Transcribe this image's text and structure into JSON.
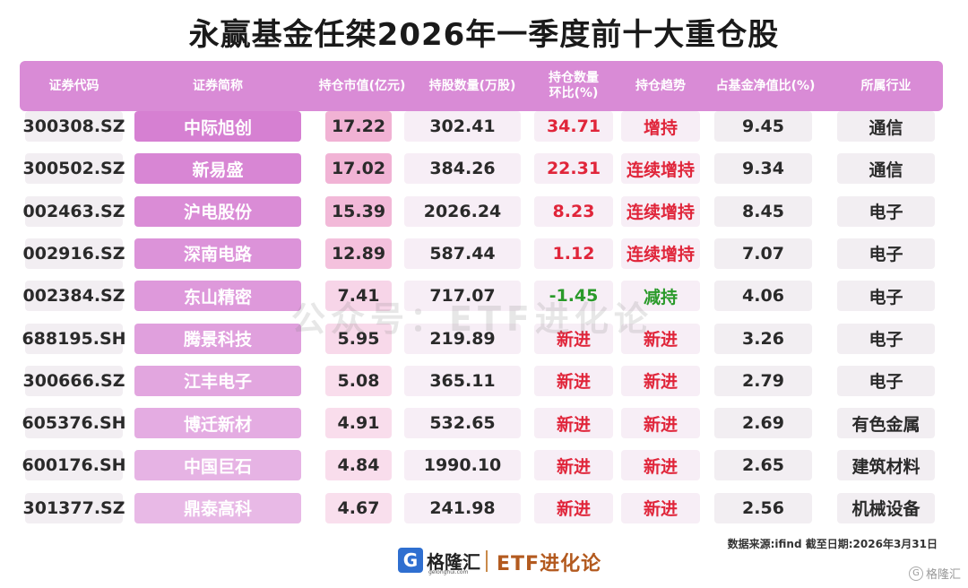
{
  "title": "永赢基金任桀2026年一季度前十大重仓股",
  "colors": {
    "header_bg": "#d98bd6",
    "increase_red": "#e0253a",
    "decrease_green": "#2a9a2a",
    "brand_orange": "#b35a1f"
  },
  "headers": [
    "证券代码",
    "证券简称",
    "持仓市值(亿元)",
    "持股数量(万股)",
    "持仓数量\n环比(%)",
    "持仓趋势",
    "占基金净值比(%)",
    "所属行业"
  ],
  "rows": [
    {
      "code": "300308.SZ",
      "name": "中际旭创",
      "mv": "17.22",
      "qty": "302.41",
      "chg": "34.71",
      "trend": "增持",
      "nav": "9.45",
      "industry": "通信",
      "chg_color": "#e0253a",
      "trend_color": "#e0253a"
    },
    {
      "code": "300502.SZ",
      "name": "新易盛",
      "mv": "17.02",
      "qty": "384.26",
      "chg": "22.31",
      "trend": "连续增持",
      "nav": "9.34",
      "industry": "通信",
      "chg_color": "#e0253a",
      "trend_color": "#e0253a"
    },
    {
      "code": "002463.SZ",
      "name": "沪电股份",
      "mv": "15.39",
      "qty": "2026.24",
      "chg": "8.23",
      "trend": "连续增持",
      "nav": "8.45",
      "industry": "电子",
      "chg_color": "#e0253a",
      "trend_color": "#e0253a"
    },
    {
      "code": "002916.SZ",
      "name": "深南电路",
      "mv": "12.89",
      "qty": "587.44",
      "chg": "1.12",
      "trend": "连续增持",
      "nav": "7.07",
      "industry": "电子",
      "chg_color": "#e0253a",
      "trend_color": "#e0253a"
    },
    {
      "code": "002384.SZ",
      "name": "东山精密",
      "mv": "7.41",
      "qty": "717.07",
      "chg": "-1.45",
      "trend": "减持",
      "nav": "4.06",
      "industry": "电子",
      "chg_color": "#2a9a2a",
      "trend_color": "#2a9a2a"
    },
    {
      "code": "688195.SH",
      "name": "腾景科技",
      "mv": "5.95",
      "qty": "219.89",
      "chg": "新进",
      "trend": "新进",
      "nav": "3.26",
      "industry": "电子",
      "chg_color": "#e0253a",
      "trend_color": "#e0253a"
    },
    {
      "code": "300666.SZ",
      "name": "江丰电子",
      "mv": "5.08",
      "qty": "365.11",
      "chg": "新进",
      "trend": "新进",
      "nav": "2.79",
      "industry": "电子",
      "chg_color": "#e0253a",
      "trend_color": "#e0253a"
    },
    {
      "code": "605376.SH",
      "name": "博迁新材",
      "mv": "4.91",
      "qty": "532.65",
      "chg": "新进",
      "trend": "新进",
      "nav": "2.69",
      "industry": "有色金属",
      "chg_color": "#e0253a",
      "trend_color": "#e0253a"
    },
    {
      "code": "600176.SH",
      "name": "中国巨石",
      "mv": "4.84",
      "qty": "1990.10",
      "chg": "新进",
      "trend": "新进",
      "nav": "2.65",
      "industry": "建筑材料",
      "chg_color": "#e0253a",
      "trend_color": "#e0253a"
    },
    {
      "code": "301377.SZ",
      "name": "鼎泰高科",
      "mv": "4.67",
      "qty": "241.98",
      "chg": "新进",
      "trend": "新进",
      "nav": "2.56",
      "industry": "机械设备",
      "chg_color": "#e0253a",
      "trend_color": "#e0253a"
    }
  ],
  "watermark": "公众号：ETF进化论",
  "source": "数据来源:ifind 截至日期:2026年3月31日",
  "footer": {
    "logo_glyph": "G",
    "logo_text": "格隆汇",
    "logo_sub": "gelonghui.com",
    "brand": "ETF进化论"
  },
  "corner_mark": "格隆汇",
  "corner_icon": "gelonghui-icon"
}
